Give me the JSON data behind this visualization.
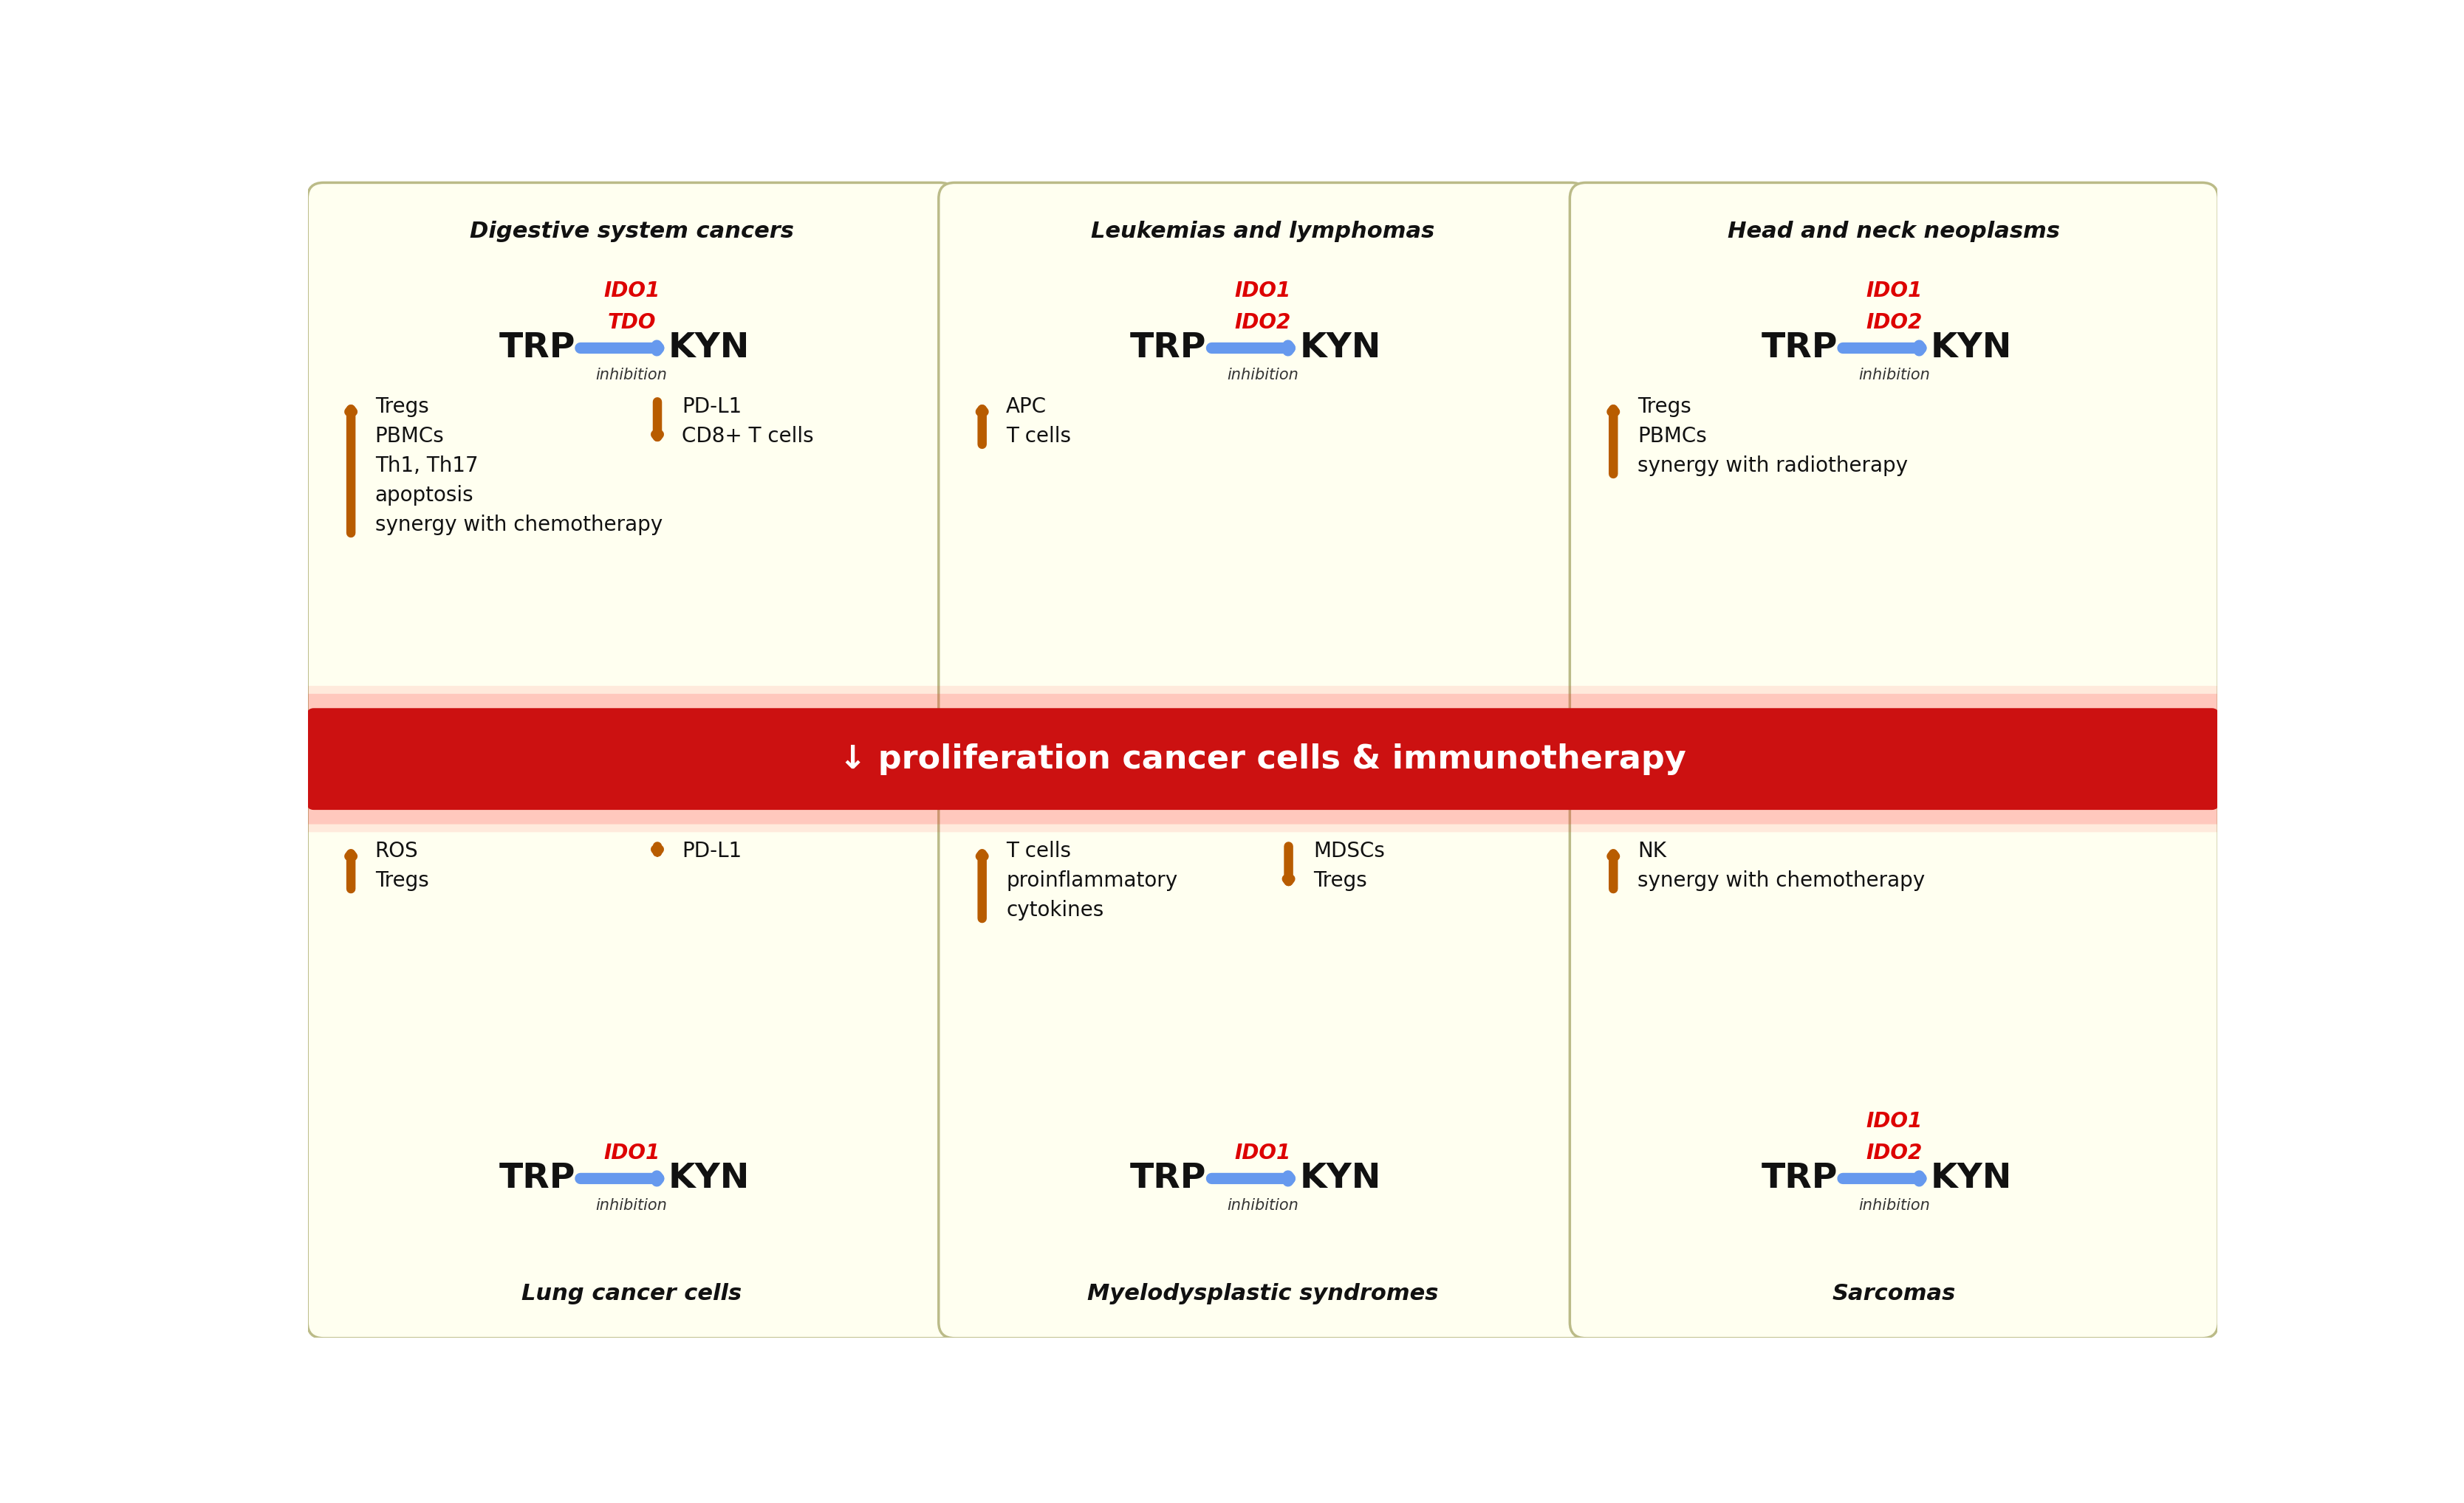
{
  "bg_color": "#ffffff",
  "panel_bg": "#fffff0",
  "panel_border": "#bbbb88",
  "center_banner_color": "#cc1111",
  "center_banner_text": "↓ proliferation cancer cells & immunotherapy",
  "center_banner_text_color": "#ffffff",
  "arrow_up_color": "#b85c00",
  "arrow_down_color": "#b85c00",
  "trp_kyn_color": "#111111",
  "inhibition_color": "#333333",
  "enzyme_color": "#dd0000",
  "blue_arrow_color": "#6699ee",
  "panels": [
    {
      "title": "Digestive system cancers",
      "enzymes": [
        "IDO1",
        "TDO"
      ],
      "up_items": [
        "Tregs",
        "PBMCs",
        "Th1, Th17",
        "apoptosis",
        "synergy with chemotherapy"
      ],
      "down_items": [
        "PD-L1",
        "CD8+ T cells"
      ],
      "has_up": true,
      "has_down": true,
      "row": 0,
      "col": 0
    },
    {
      "title": "Leukemias and lymphomas",
      "enzymes": [
        "IDO1",
        "IDO2"
      ],
      "up_items": [
        "APC",
        "T cells"
      ],
      "down_items": [],
      "has_up": true,
      "has_down": false,
      "row": 0,
      "col": 1
    },
    {
      "title": "Head and neck neoplasms",
      "enzymes": [
        "IDO1",
        "IDO2"
      ],
      "up_items": [
        "Tregs",
        "PBMCs",
        "synergy with radiotherapy"
      ],
      "down_items": [],
      "has_up": true,
      "has_down": false,
      "row": 0,
      "col": 2
    },
    {
      "title": "Lung cancer cells",
      "enzymes": [
        "IDO1"
      ],
      "up_items": [
        "ROS",
        "Tregs"
      ],
      "down_items": [
        "PD-L1"
      ],
      "has_up": true,
      "has_down": true,
      "row": 1,
      "col": 0
    },
    {
      "title": "Myelodysplastic syndromes",
      "enzymes": [
        "IDO1"
      ],
      "up_items": [
        "T cells",
        "proinflammatory",
        "cytokines"
      ],
      "down_items": [
        "MDSCs",
        "Tregs"
      ],
      "has_up": true,
      "has_down": true,
      "row": 1,
      "col": 1
    },
    {
      "title": "Sarcomas",
      "enzymes": [
        "IDO1",
        "IDO2"
      ],
      "up_items": [
        "NK",
        "synergy with chemotherapy"
      ],
      "down_items": [],
      "has_up": true,
      "has_down": false,
      "row": 1,
      "col": 2
    }
  ]
}
